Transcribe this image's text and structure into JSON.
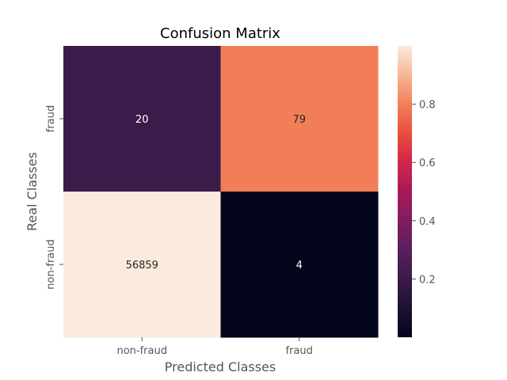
{
  "chart_data": {
    "type": "heatmap",
    "title": "Confusion Matrix",
    "xlabel": "Predicted Classes",
    "ylabel": "Real Classes",
    "x_categories": [
      "non-fraud",
      "fraud"
    ],
    "y_categories": [
      "fraud",
      "non-fraud"
    ],
    "cells": [
      {
        "row": 0,
        "col": 0,
        "label": "20",
        "value": 0.202
      },
      {
        "row": 0,
        "col": 1,
        "label": "79",
        "value": 0.798
      },
      {
        "row": 1,
        "col": 0,
        "label": "56859",
        "value": 0.99993
      },
      {
        "row": 1,
        "col": 1,
        "label": "4",
        "value": 7e-05
      }
    ],
    "colorbar": {
      "range": [
        0,
        1
      ],
      "ticks": [
        0.2,
        0.4,
        0.6,
        0.8
      ],
      "tick_labels": [
        "0.2",
        "0.4",
        "0.6",
        "0.8"
      ]
    },
    "colormap": "rocket",
    "grid": false
  }
}
